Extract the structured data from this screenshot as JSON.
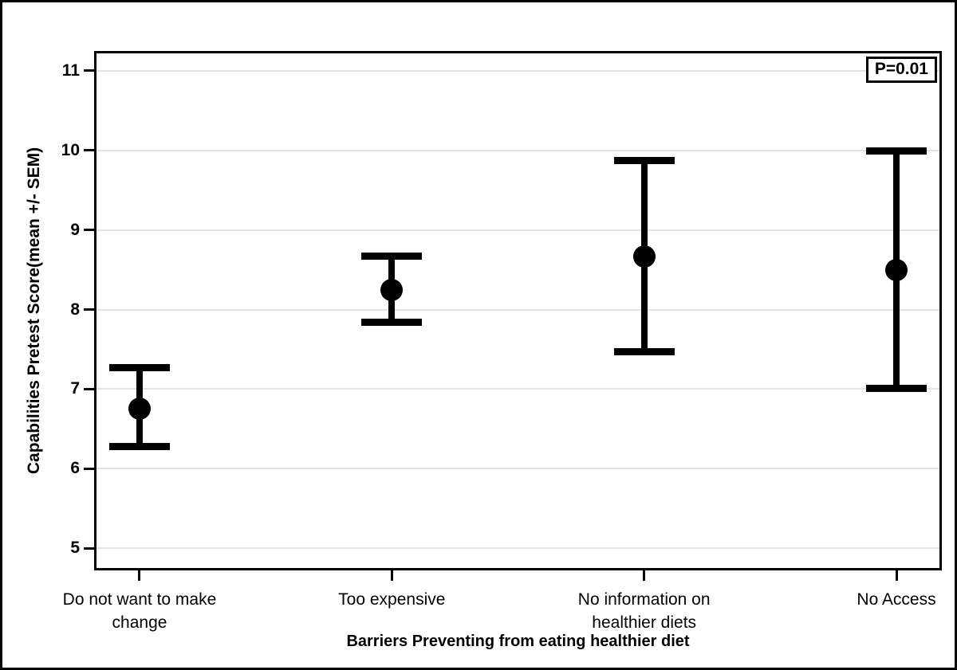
{
  "figure": {
    "p_value_label": "P=0.01"
  },
  "chart_data": {
    "type": "errorbar",
    "title": "",
    "xlabel": "Barriers Preventing from eating healthier diet",
    "ylabel": "Capabilities Pretest Score(mean +/- SEM)",
    "ylim": [
      4.72,
      11.25
    ],
    "yticks": [
      5,
      6,
      7,
      8,
      9,
      10,
      11
    ],
    "grid": true,
    "legend": "none",
    "annotation": "P=0.01",
    "annotation_position": "top-right",
    "categories": [
      "Do not want to make change",
      "Too expensive",
      "No information on healthier diets",
      "No Access"
    ],
    "category_label_lines": [
      [
        "Do not want to make",
        "change"
      ],
      [
        "Too expensive"
      ],
      [
        "No information on",
        "healthier diets"
      ],
      [
        "No Access"
      ]
    ],
    "series": [
      {
        "name": "Capabilities Pretest Score (mean +/- SEM)",
        "means": [
          6.75,
          8.25,
          8.67,
          8.5
        ],
        "upper": [
          7.27,
          8.68,
          9.88,
          10.0
        ],
        "lower": [
          6.27,
          7.83,
          7.46,
          7.0
        ]
      }
    ]
  },
  "colors": {
    "marker": "#000000",
    "grid": "#e2e2e2",
    "frame": "#000000",
    "background": "#ffffff"
  }
}
